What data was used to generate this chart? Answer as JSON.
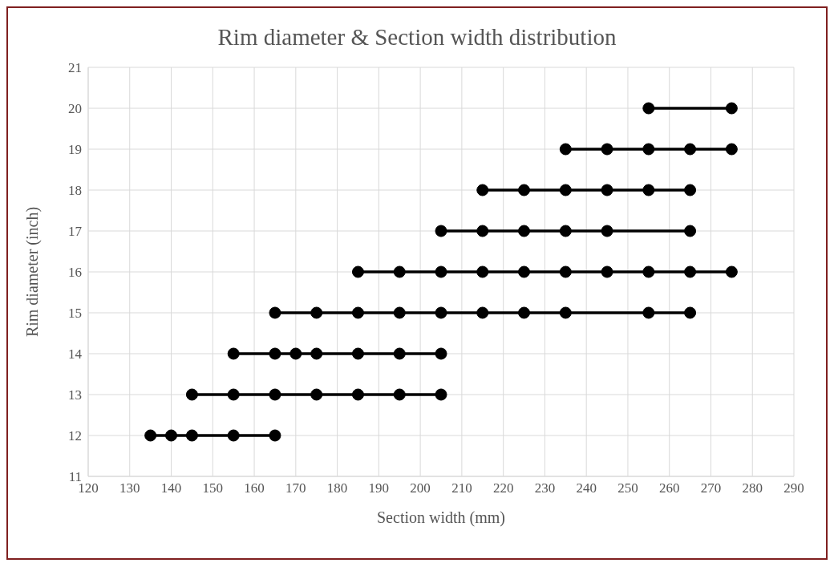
{
  "chart_data": {
    "type": "line",
    "title": "Rim diameter & Section width distribution",
    "xlabel": "Section width (mm)",
    "ylabel": "Rim diameter (inch)",
    "xlim": [
      120,
      290
    ],
    "xticks": [
      120,
      130,
      140,
      150,
      160,
      170,
      180,
      190,
      200,
      210,
      220,
      230,
      240,
      250,
      260,
      270,
      280,
      290
    ],
    "ylim": [
      11,
      21
    ],
    "yticks": [
      11,
      12,
      13,
      14,
      15,
      16,
      17,
      18,
      19,
      20,
      21
    ],
    "grid": true,
    "marker": "circle",
    "line_style": "solid",
    "series": [
      {
        "color": "#000000",
        "x": [
          135,
          140,
          145,
          155,
          165
        ],
        "values": [
          12,
          12,
          12,
          12,
          12
        ]
      },
      {
        "color": "#000000",
        "x": [
          145,
          155,
          165,
          175,
          185,
          195,
          205
        ],
        "values": [
          13,
          13,
          13,
          13,
          13,
          13,
          13
        ]
      },
      {
        "color": "#000000",
        "x": [
          155,
          165,
          170,
          175,
          185,
          195,
          205
        ],
        "values": [
          14,
          14,
          14,
          14,
          14,
          14,
          14
        ]
      },
      {
        "color": "#000000",
        "x": [
          165,
          175,
          185,
          195,
          205,
          215,
          225,
          235,
          255,
          265
        ],
        "values": [
          15,
          15,
          15,
          15,
          15,
          15,
          15,
          15,
          15,
          15
        ]
      },
      {
        "color": "#000000",
        "x": [
          185,
          195,
          205,
          215,
          225,
          235,
          245,
          255,
          265,
          275
        ],
        "values": [
          16,
          16,
          16,
          16,
          16,
          16,
          16,
          16,
          16,
          16
        ]
      },
      {
        "color": "#000000",
        "x": [
          205,
          215,
          225,
          235,
          245,
          265
        ],
        "values": [
          17,
          17,
          17,
          17,
          17,
          17
        ]
      },
      {
        "color": "#000000",
        "x": [
          215,
          225,
          235,
          245,
          255,
          265
        ],
        "values": [
          18,
          18,
          18,
          18,
          18,
          18
        ]
      },
      {
        "color": "#000000",
        "x": [
          235,
          245,
          255,
          265,
          275
        ],
        "values": [
          19,
          19,
          19,
          19,
          19
        ]
      },
      {
        "color": "#000000",
        "x": [
          255,
          275
        ],
        "values": [
          20,
          20
        ]
      }
    ]
  }
}
